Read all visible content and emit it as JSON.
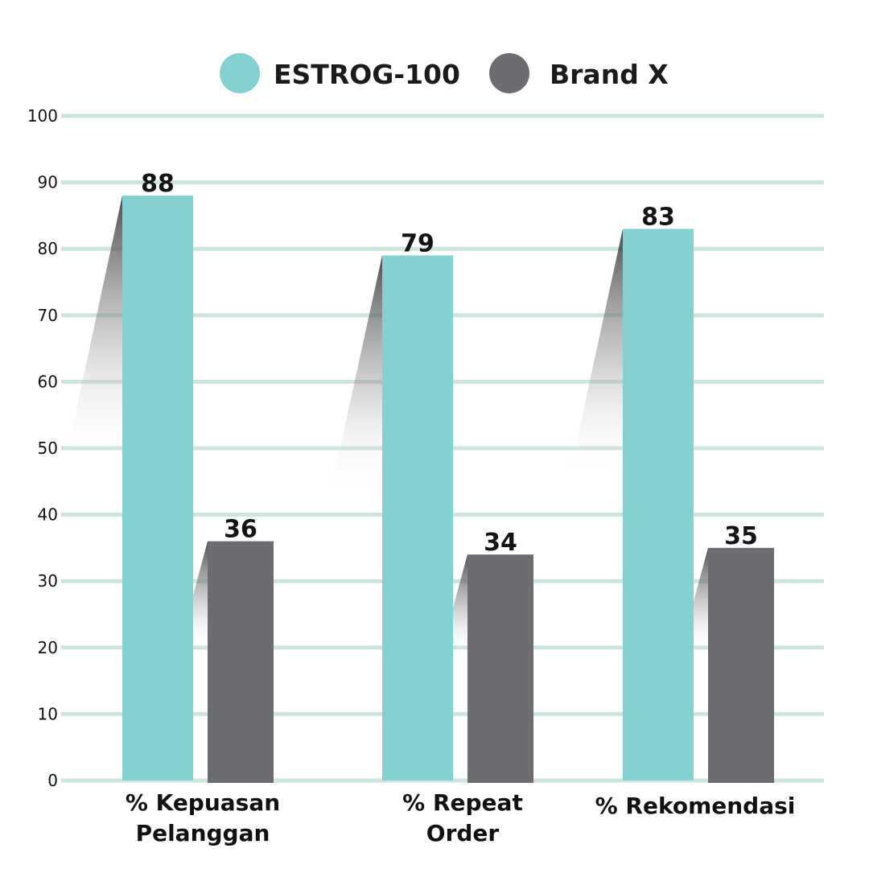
{
  "chart_data": {
    "type": "bar",
    "categories": [
      [
        "% Kepuasan",
        "Pelanggan"
      ],
      [
        "% Repeat",
        "Order"
      ],
      [
        "% Rekomendasi"
      ]
    ],
    "series": [
      {
        "name": "ESTROG-100",
        "values": [
          88,
          79,
          83
        ]
      },
      {
        "name": "Brand X",
        "values": [
          36,
          34,
          35
        ]
      }
    ],
    "ylim": [
      0,
      100
    ],
    "yticks": [
      0,
      10,
      20,
      30,
      40,
      50,
      60,
      70,
      80,
      90,
      100
    ],
    "grid": true,
    "legend": "top-center",
    "xlabel": "",
    "ylabel": "",
    "title": ""
  },
  "colors": {
    "series": [
      "#84d1d2",
      "#6c6d71"
    ],
    "grid": "#cfe3df",
    "text": "#141414"
  }
}
